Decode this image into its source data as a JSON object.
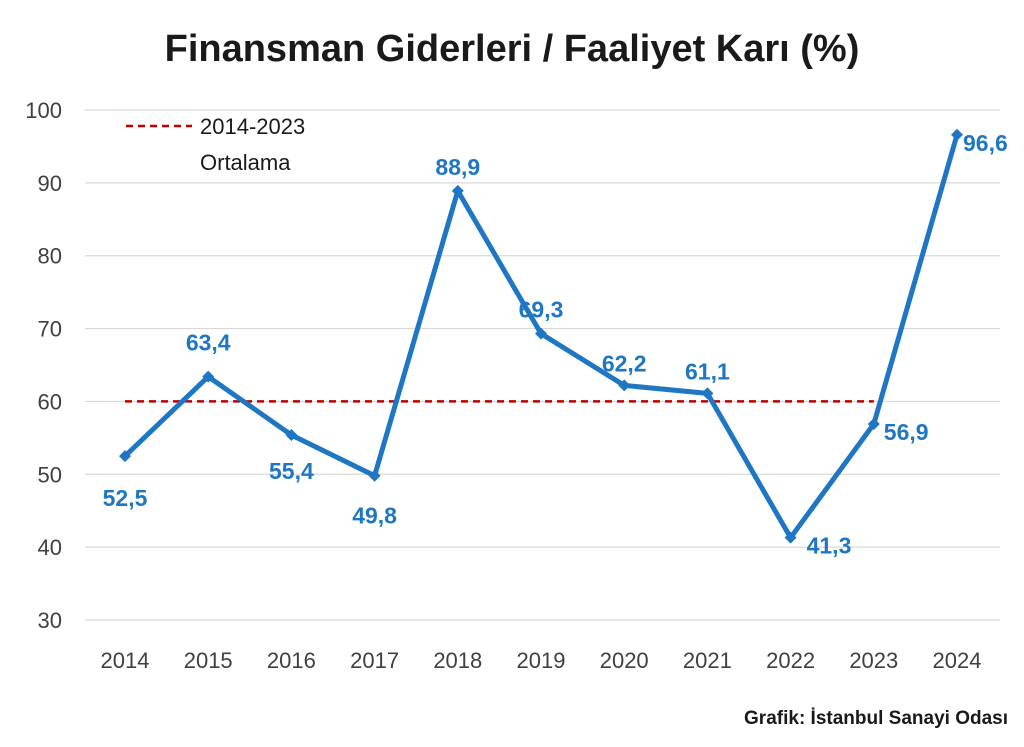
{
  "chart_data": {
    "type": "line",
    "title": "Finansman Giderleri / Faaliyet Karı (%)",
    "xlabel": "",
    "ylabel": "",
    "x": [
      "2014",
      "2015",
      "2016",
      "2017",
      "2018",
      "2019",
      "2020",
      "2021",
      "2022",
      "2023",
      "2024"
    ],
    "series": [
      {
        "values": [
          52.5,
          63.4,
          55.4,
          49.8,
          88.9,
          69.3,
          62.2,
          61.1,
          41.3,
          56.9,
          96.6
        ],
        "labels": [
          "52,5",
          "63,4",
          "55,4",
          "49,8",
          "88,9",
          "69,3",
          "62,2",
          "61,1",
          "41,3",
          "56,9",
          "96,6"
        ],
        "color": "#1f77c4"
      }
    ],
    "average_line": {
      "value": 60,
      "label_line1": "2014-2023",
      "label_line2": "Ortalama",
      "color": "#c00000",
      "style": "dashed"
    },
    "ylim": [
      30,
      100
    ],
    "yticks": [
      "30",
      "40",
      "50",
      "60",
      "70",
      "80",
      "90",
      "100"
    ],
    "grid": true,
    "legend": "top-left"
  },
  "source_text": "Grafik: İstanbul Sanayi Odası"
}
